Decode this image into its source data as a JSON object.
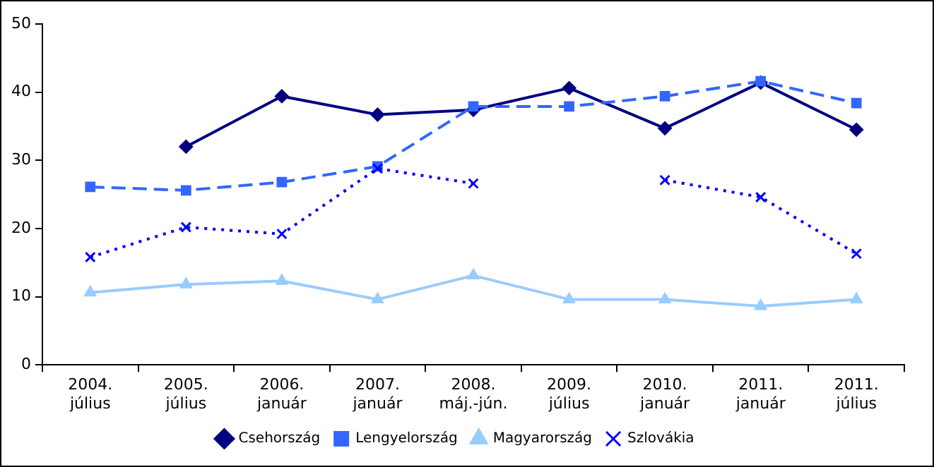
{
  "chart_data": {
    "type": "line",
    "categories": [
      "2004. július",
      "2005. július",
      "2006. január",
      "2007. január",
      "2008. máj.-jún.",
      "2009. július",
      "2010. január",
      "2011. január",
      "2011. július"
    ],
    "series": [
      {
        "name": "Csehország",
        "color": "#000080",
        "marker": "diamond",
        "line_style": "solid",
        "values": [
          null,
          32.0,
          39.4,
          36.7,
          37.4,
          40.6,
          34.7,
          41.4,
          34.5
        ]
      },
      {
        "name": "Lengyelország",
        "color": "#3366ff",
        "marker": "square",
        "line_style": "dashed",
        "values": [
          26.1,
          25.6,
          26.8,
          29.1,
          37.9,
          37.9,
          39.4,
          41.6,
          38.4
        ]
      },
      {
        "name": "Magyarország",
        "color": "#99ccff",
        "marker": "triangle",
        "line_style": "solid",
        "values": [
          10.6,
          11.8,
          12.3,
          9.6,
          13.1,
          9.6,
          9.6,
          8.6,
          9.6
        ]
      },
      {
        "name": "Szlovákia",
        "color": "#0000ff",
        "marker": "cross",
        "line_style": "dotted",
        "values": [
          15.8,
          20.2,
          19.2,
          28.8,
          26.6,
          null,
          27.1,
          24.6,
          16.3
        ]
      }
    ],
    "ylim": [
      0,
      50
    ],
    "yticks": [
      0,
      10,
      20,
      30,
      40,
      50
    ],
    "grid": false,
    "legend": "bottom"
  }
}
